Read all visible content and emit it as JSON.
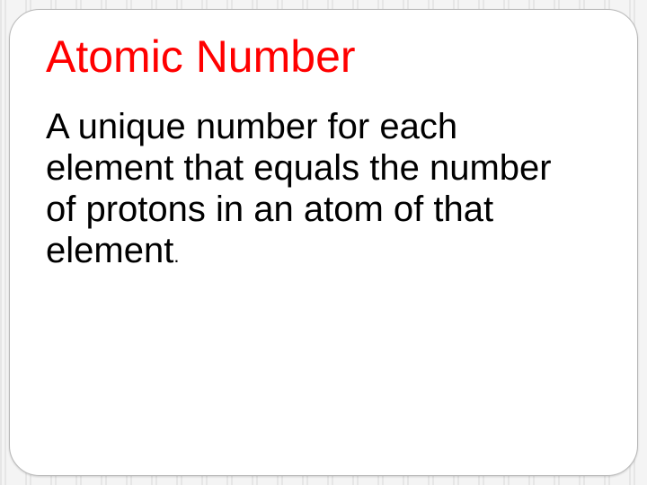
{
  "slide": {
    "title": "Atomic Number",
    "title_color": "#ff0000",
    "title_fontsize": 50,
    "body": "A unique number for each element that equals the number of protons in an atom of that element",
    "body_period": ".",
    "body_color": "#000000",
    "body_fontsize": 40,
    "background_stripe_colors": [
      "#e6e6e6",
      "#f4f4f4"
    ],
    "card_background": "#ffffff",
    "card_border_color": "#b8b8b8",
    "card_border_radius": 34
  }
}
